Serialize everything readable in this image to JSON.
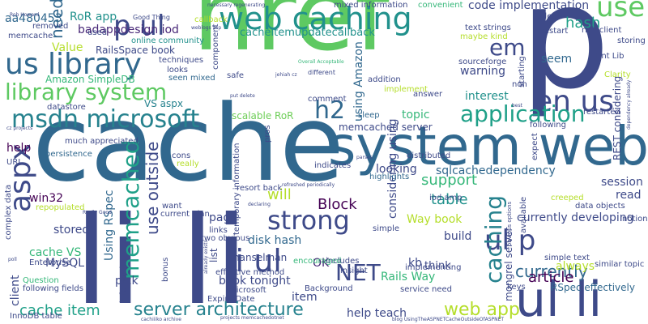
{
  "word_cloud": {
    "words": [
      {
        "text": "href",
        "color": "#5ec962"
      },
      {
        "text": "cache",
        "color": "#31688e"
      },
      {
        "text": "system web",
        "color": "#31688e"
      },
      {
        "text": "li li",
        "color": "#3e4a89"
      },
      {
        "text": "p",
        "color": "#3e4a89"
      },
      {
        "text": "ul li",
        "color": "#3e4a89"
      },
      {
        "text": "web caching",
        "color": "#21918c"
      },
      {
        "text": "li ul",
        "color": "#3e4a89"
      },
      {
        "text": "us library",
        "color": "#31688e"
      },
      {
        "text": "msdn microsoft",
        "color": "#26828e"
      },
      {
        "text": "library system",
        "color": "#5ec962"
      },
      {
        "text": "aspx",
        "color": "#3e4a89"
      },
      {
        "text": "en us",
        "color": "#3e4a89"
      },
      {
        "text": "application",
        "color": "#1fa088"
      },
      {
        "text": "ul p",
        "color": "#3e4a89"
      },
      {
        "text": "use",
        "color": "#5ec962"
      },
      {
        "text": "p ul",
        "color": "#3e4a89"
      },
      {
        "text": "strong",
        "color": "#3e4a89"
      },
      {
        "text": "memcached",
        "color": "#1fa088"
      },
      {
        "text": "caching",
        "color": "#26828e"
      },
      {
        "text": "server architecture",
        "color": "#26828e"
      },
      {
        "text": "web app",
        "color": "#b5de2b"
      },
      {
        "text": "em",
        "color": "#3e4a89"
      },
      {
        "text": "hash",
        "color": "#1fa088"
      },
      {
        "text": "h2",
        "color": "#31688e"
      },
      {
        "text": "NET",
        "color": "#3e4a89"
      },
      {
        "text": "Block",
        "color": "#440154"
      },
      {
        "text": "table",
        "color": "#21918c"
      },
      {
        "text": "support",
        "color": "#35b779"
      },
      {
        "text": "currently",
        "color": "#31688e"
      },
      {
        "text": "article",
        "color": "#440154"
      },
      {
        "text": "cache item",
        "color": "#1fa088"
      },
      {
        "text": "use outside",
        "color": "#3e4a89"
      },
      {
        "text": "need",
        "color": "#31688e"
      },
      {
        "text": "RoR app",
        "color": "#21918c"
      },
      {
        "text": "badappdesign iod",
        "color": "#482878"
      },
      {
        "text": "aa480453",
        "color": "#31688e"
      },
      {
        "text": "cacheitemupdatecallback",
        "color": "#21918c"
      },
      {
        "text": "code implementation",
        "color": "#3e4a89"
      },
      {
        "text": "Value",
        "color": "#b5de2b"
      },
      {
        "text": "RailsSpace book",
        "color": "#3e4a89"
      },
      {
        "text": "Amazon SimpleDB",
        "color": "#35b779"
      },
      {
        "text": "VS aspx",
        "color": "#26828e"
      },
      {
        "text": "scalable RoR",
        "color": "#6ece58"
      },
      {
        "text": "memcached server",
        "color": "#3e4a89"
      },
      {
        "text": "topic",
        "color": "#35b779"
      },
      {
        "text": "interest",
        "color": "#21918c"
      },
      {
        "text": "warning",
        "color": "#3e4a89"
      },
      {
        "text": "seem",
        "color": "#31688e"
      },
      {
        "text": "sqlcachedependency",
        "color": "#31688e"
      },
      {
        "text": "session",
        "color": "#3e4a89"
      },
      {
        "text": "read",
        "color": "#3e4a89"
      },
      {
        "text": "looking",
        "color": "#3e4a89"
      },
      {
        "text": "will",
        "color": "#b5de2b"
      },
      {
        "text": "page",
        "color": "#3e4a89"
      },
      {
        "text": "disk hash",
        "color": "#31688e"
      },
      {
        "text": "OK",
        "color": "#482878"
      },
      {
        "text": "kb",
        "color": "#3e4a89"
      },
      {
        "text": "think",
        "color": "#3e4a89"
      },
      {
        "text": "build",
        "color": "#3e4a89"
      },
      {
        "text": "Way book",
        "color": "#b5de2b"
      },
      {
        "text": "Rails Way",
        "color": "#35b779"
      },
      {
        "text": "help teach",
        "color": "#3e4a89"
      },
      {
        "text": "book tonight",
        "color": "#3e4a89"
      },
      {
        "text": "MySQL",
        "color": "#3e4a89"
      },
      {
        "text": "win32",
        "color": "#440154"
      },
      {
        "text": "stored",
        "color": "#3e4a89"
      },
      {
        "text": "cache VS",
        "color": "#35b779"
      },
      {
        "text": "pick",
        "color": "#3e4a89"
      },
      {
        "text": "item",
        "color": "#3e4a89"
      },
      {
        "text": "always",
        "color": "#b5de2b"
      },
      {
        "text": "RSpec effectively",
        "color": "#31688e"
      },
      {
        "text": "mongrel server",
        "color": "#3e4a89"
      },
      {
        "text": "client",
        "color": "#3e4a89"
      },
      {
        "text": "help",
        "color": "#440154"
      },
      {
        "text": "much appreciated",
        "color": "#3e4a89"
      },
      {
        "text": "persistence",
        "color": "#31688e"
      },
      {
        "text": "Question",
        "color": "#35b779"
      },
      {
        "text": "following fields",
        "color": "#3e4a89"
      },
      {
        "text": "considering using",
        "color": "#3e4a89"
      },
      {
        "text": "sqlcachedependency",
        "color": "#31688e"
      },
      {
        "text": "using Amazon",
        "color": "#31688e"
      },
      {
        "text": "currently developing",
        "color": "#3e4a89"
      },
      {
        "text": "REST considering",
        "color": "#3e4a89"
      },
      {
        "text": "Using RSpec",
        "color": "#31688e"
      },
      {
        "text": "temporary information",
        "color": "#3e4a89"
      },
      {
        "text": "rich client",
        "color": "#3e4a89"
      },
      {
        "text": "Ent Lib",
        "color": "#3e4a89"
      },
      {
        "text": "Clarity",
        "color": "#b5de2b"
      },
      {
        "text": "restarted",
        "color": "#3e4a89"
      },
      {
        "text": "hanselman",
        "color": "#3e4a89"
      },
      {
        "text": "effective method",
        "color": "#3e4a89"
      },
      {
        "text": "encouraged",
        "color": "#35b779"
      },
      {
        "text": "Background",
        "color": "#3e4a89"
      },
      {
        "text": "service need",
        "color": "#3e4a89"
      },
      {
        "text": "includes",
        "color": "#3e4a89"
      },
      {
        "text": "implementing",
        "color": "#3e4a89"
      },
      {
        "text": "distributed",
        "color": "#3e4a89"
      },
      {
        "text": "highlights",
        "color": "#31688e"
      },
      {
        "text": "indicates",
        "color": "#3e4a89"
      },
      {
        "text": "sleep",
        "color": "#31688e"
      },
      {
        "text": "comment",
        "color": "#3e4a89"
      },
      {
        "text": "answer",
        "color": "#3e4a89"
      },
      {
        "text": "iod amp",
        "color": "#3e4a89"
      },
      {
        "text": "addition",
        "color": "#3e4a89"
      },
      {
        "text": "mixed information",
        "color": "#3e4a89"
      },
      {
        "text": "convenient",
        "color": "#35b779"
      },
      {
        "text": "text strings",
        "color": "#3e4a89"
      },
      {
        "text": "maybe kind",
        "color": "#b5de2b"
      },
      {
        "text": "sourceforge",
        "color": "#3e4a89"
      },
      {
        "text": "starting",
        "color": "#3e4a89"
      },
      {
        "text": "storing",
        "color": "#3e4a89"
      },
      {
        "text": "failed",
        "color": "#3e4a89"
      },
      {
        "text": "restart",
        "color": "#3e4a89"
      },
      {
        "text": "callback",
        "color": "#b5de2b"
      },
      {
        "text": "online community",
        "color": "#21918c"
      },
      {
        "text": "removed",
        "color": "#3e4a89"
      },
      {
        "text": "memcache",
        "color": "#3e4a89"
      },
      {
        "text": "used",
        "color": "#3e4a89"
      },
      {
        "text": "component",
        "color": "#3e4a89"
      },
      {
        "text": "techniques",
        "color": "#3e4a89"
      },
      {
        "text": "looks",
        "color": "#3e4a89"
      },
      {
        "text": "seen mixed",
        "color": "#31688e"
      },
      {
        "text": "safe",
        "color": "#3e4a89"
      },
      {
        "text": "pros",
        "color": "#3e4a89"
      },
      {
        "text": "cons",
        "color": "#3e4a89"
      },
      {
        "text": "really",
        "color": "#b5de2b"
      },
      {
        "text": "resort back",
        "color": "#3e4a89"
      },
      {
        "text": "want",
        "color": "#3e4a89"
      },
      {
        "text": "current plan",
        "color": "#3e4a89"
      },
      {
        "text": "links",
        "color": "#3e4a89"
      },
      {
        "text": "two obvious",
        "color": "#3e4a89"
      },
      {
        "text": "list",
        "color": "#3e4a89"
      },
      {
        "text": "simple text",
        "color": "#3e4a89"
      },
      {
        "text": "similar topic",
        "color": "#3e4a89"
      },
      {
        "text": "keys",
        "color": "#3e4a89"
      },
      {
        "text": "creeped",
        "color": "#b5de2b"
      },
      {
        "text": "data objects",
        "color": "#3e4a89"
      },
      {
        "text": "notion",
        "color": "#3e4a89"
      },
      {
        "text": "Enterprise",
        "color": "#3e4a89"
      },
      {
        "text": "repopulated",
        "color": "#b5de2b"
      },
      {
        "text": "complex data",
        "color": "#3e4a89"
      },
      {
        "text": "InnoDB table",
        "color": "#3e4a89"
      },
      {
        "text": "URL",
        "color": "#3e4a89"
      },
      {
        "text": "datastore",
        "color": "#3e4a89"
      },
      {
        "text": "Expiry Date",
        "color": "#3e4a89"
      },
      {
        "text": "microsoft",
        "color": "#3e4a89"
      },
      {
        "text": "insight",
        "color": "#3e4a89"
      },
      {
        "text": "simple",
        "color": "#3e4a89"
      },
      {
        "text": "bonus",
        "color": "#3e4a89"
      },
      {
        "text": "information",
        "color": "#3e4a89"
      },
      {
        "text": "expect",
        "color": "#3e4a89"
      },
      {
        "text": "non",
        "color": "#3e4a89"
      },
      {
        "text": "available",
        "color": "#3e4a89"
      },
      {
        "text": "following",
        "color": "#3e4a89"
      },
      {
        "text": "implement",
        "color": "#b5de2b"
      },
      {
        "text": "different",
        "color": "#3e4a89"
      },
      {
        "text": "Good Thing",
        "color": "#3e4a89"
      },
      {
        "text": "Rob Howard",
        "color": "#3e4a89"
      },
      {
        "text": "weblogs asp",
        "color": "#3e4a89"
      },
      {
        "text": "necessary regenerating",
        "color": "#3e4a89"
      },
      {
        "text": "jehiah cz",
        "color": "#3e4a89"
      },
      {
        "text": "cz projects",
        "color": "#3e4a89"
      },
      {
        "text": "refreshed periodically",
        "color": "#3e4a89"
      },
      {
        "text": "Really Good",
        "color": "#3e4a89"
      },
      {
        "text": "already exists",
        "color": "#3e4a89"
      },
      {
        "text": "cachiiiko archive",
        "color": "#3e4a89"
      },
      {
        "text": "projects memcachedotnet",
        "color": "#3e4a89"
      },
      {
        "text": "blog UsingTheASPNETCacheOutsideOfASPNET",
        "color": "#3e4a89"
      },
      {
        "text": "obvious options",
        "color": "#3e4a89"
      },
      {
        "text": "dependency already",
        "color": "#3e4a89"
      },
      {
        "text": "put delete",
        "color": "#3e4a89"
      },
      {
        "text": "poll",
        "color": "#3e4a89"
      },
      {
        "text": "best",
        "color": "#3e4a89"
      },
      {
        "text": "parses",
        "color": "#3e4a89"
      },
      {
        "text": "declaring",
        "color": "#3e4a89"
      },
      {
        "text": "Overall Acceptable",
        "color": "#35b779"
      }
    ]
  }
}
